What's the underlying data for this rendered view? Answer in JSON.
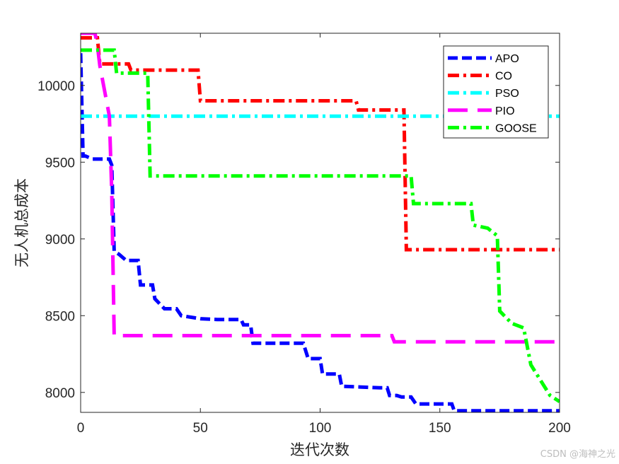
{
  "chart_data": {
    "type": "line",
    "title": "",
    "xlabel": "迭代次数",
    "ylabel": "无人机总成本",
    "xlim": [
      0,
      200
    ],
    "ylim": [
      7870,
      10340
    ],
    "xticks": [
      0,
      50,
      100,
      150,
      200
    ],
    "yticks": [
      8000,
      8500,
      9000,
      9500,
      10000
    ],
    "grid": false,
    "legend_position": "top-right",
    "series": [
      {
        "name": "APO",
        "color": "#0000ff",
        "dash": "dashed",
        "step": true,
        "points": [
          [
            0,
            10210
          ],
          [
            1,
            9540
          ],
          [
            2,
            9540
          ],
          [
            5,
            9520
          ],
          [
            12,
            9520
          ],
          [
            13,
            9480
          ],
          [
            14,
            8920
          ],
          [
            16,
            8900
          ],
          [
            19,
            8860
          ],
          [
            24,
            8860
          ],
          [
            25,
            8700
          ],
          [
            30,
            8700
          ],
          [
            31,
            8610
          ],
          [
            35,
            8545
          ],
          [
            40,
            8545
          ],
          [
            42,
            8500
          ],
          [
            50,
            8480
          ],
          [
            57,
            8475
          ],
          [
            60,
            8475
          ],
          [
            67,
            8475
          ],
          [
            68,
            8440
          ],
          [
            71,
            8440
          ],
          [
            72,
            8320
          ],
          [
            93,
            8320
          ],
          [
            95,
            8220
          ],
          [
            100,
            8220
          ],
          [
            101,
            8120
          ],
          [
            108,
            8120
          ],
          [
            109,
            8040
          ],
          [
            125,
            8030
          ],
          [
            128,
            8030
          ],
          [
            129,
            7980
          ],
          [
            132,
            7980
          ],
          [
            134,
            7970
          ],
          [
            138,
            7970
          ],
          [
            140,
            7925
          ],
          [
            155,
            7925
          ],
          [
            156,
            7880
          ],
          [
            200,
            7880
          ]
        ]
      },
      {
        "name": "CO",
        "color": "#ff0000",
        "dash": "dashdot",
        "step": true,
        "points": [
          [
            0,
            10310
          ],
          [
            7,
            10310
          ],
          [
            8,
            10140
          ],
          [
            20,
            10140
          ],
          [
            21,
            10100
          ],
          [
            49,
            10100
          ],
          [
            50,
            9900
          ],
          [
            115,
            9900
          ],
          [
            116,
            9840
          ],
          [
            135,
            9840
          ],
          [
            136,
            8930
          ],
          [
            200,
            8930
          ]
        ]
      },
      {
        "name": "PSO",
        "color": "#00ffff",
        "dash": "dashdot",
        "step": true,
        "points": [
          [
            0,
            9800
          ],
          [
            200,
            9800
          ]
        ]
      },
      {
        "name": "PIO",
        "color": "#ff00ff",
        "dash": "longdash",
        "step": true,
        "points": [
          [
            0,
            10340
          ],
          [
            6,
            10340
          ],
          [
            7,
            10260
          ],
          [
            8,
            10130
          ],
          [
            12,
            9800
          ],
          [
            13,
            9300
          ],
          [
            14,
            8370
          ],
          [
            130,
            8370
          ],
          [
            131,
            8330
          ],
          [
            200,
            8330
          ]
        ]
      },
      {
        "name": "GOOSE",
        "color": "#00ff00",
        "dash": "dashdot",
        "step": true,
        "points": [
          [
            0,
            10230
          ],
          [
            14,
            10230
          ],
          [
            15,
            10080
          ],
          [
            28,
            10080
          ],
          [
            29,
            9410
          ],
          [
            138,
            9410
          ],
          [
            139,
            9230
          ],
          [
            163,
            9230
          ],
          [
            164,
            9090
          ],
          [
            170,
            9070
          ],
          [
            174,
            9020
          ],
          [
            175,
            8530
          ],
          [
            180,
            8450
          ],
          [
            185,
            8420
          ],
          [
            188,
            8180
          ],
          [
            192,
            8080
          ],
          [
            196,
            7980
          ],
          [
            200,
            7940
          ]
        ]
      }
    ]
  },
  "watermark": "CSDN @海神之光"
}
